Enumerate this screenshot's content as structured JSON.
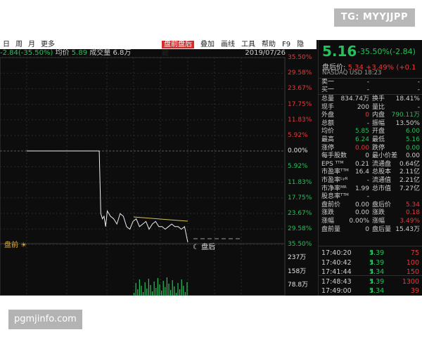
{
  "watermarks": {
    "top": "TG: MYYJJPP",
    "bottom": "pgmjinfo.com"
  },
  "toolbar": {
    "left": [
      "日",
      "周",
      "月",
      "更多"
    ],
    "right": [
      "盘前盘后",
      "叠加",
      "画线",
      "工具",
      "帮助",
      "F9",
      "隐藏"
    ],
    "active_index": 0
  },
  "infobar": {
    "change": "-2.84(-35.50%)",
    "avg_label": "均价",
    "avg_value": "5.89",
    "vol_label": "成交量",
    "vol_value": "6.8万",
    "date": "2019/07/26"
  },
  "chart_data": {
    "type": "line",
    "title": "",
    "xlabel": "",
    "ylabel": "",
    "y_axis_labels": [
      "35.50%",
      "29.58%",
      "23.67%",
      "17.75%",
      "11.83%",
      "5.92%",
      "0.00%",
      "5.92%",
      "11.83%",
      "17.75%",
      "23.67%",
      "29.58%",
      "35.50%"
    ],
    "volume_axis_labels": [
      "237万",
      "158万",
      "78.8万"
    ],
    "ylim_percent": [
      -35.5,
      35.5
    ],
    "session_labels": {
      "pre": "盘前",
      "post": "盘后"
    },
    "series": [
      {
        "x": [
          0,
          5,
          10,
          15,
          20,
          25,
          30,
          35,
          40,
          44,
          45,
          46,
          47,
          48,
          49,
          50,
          52,
          54,
          56,
          58,
          60,
          62,
          64,
          66,
          68,
          70,
          72,
          74,
          76,
          78,
          80,
          82,
          84,
          86,
          88,
          90,
          92,
          94,
          96,
          98,
          100
        ],
        "values": [
          0,
          0,
          0,
          0,
          0,
          0,
          0,
          0,
          0,
          0,
          0,
          -24,
          -26,
          -25,
          -29,
          -23,
          -25,
          -26,
          -28,
          -24,
          -25,
          -29,
          -30,
          -27,
          -26,
          -29,
          -28,
          -27,
          -30,
          -28,
          -27,
          -29,
          -29,
          -30,
          -29,
          -28,
          -29,
          -29,
          -30,
          -29,
          -35
        ]
      }
    ]
  },
  "panel": {
    "price": "5.16",
    "change": "-35.50%(-2.84)",
    "after_label": "盘后价:",
    "after_price": "5.34",
    "after_change": "+3.49%",
    "after_extra": "(+0.1",
    "market": "NASDAQ  USD  18:23",
    "orderbook": [
      {
        "label": "卖一",
        "price": "-",
        "vol": "-"
      },
      {
        "label": "买一",
        "price": "-",
        "vol": "-"
      }
    ],
    "stats": [
      {
        "k1": "总量",
        "v1": "834.74万",
        "k2": "换手",
        "v2": "18.41%",
        "c1": "",
        "c2": ""
      },
      {
        "k1": "现手",
        "v1": "200",
        "k2": "量比",
        "v2": "-",
        "c1": "",
        "c2": ""
      },
      {
        "k1": "外盘",
        "v1": "0",
        "k2": "内盘",
        "v2": "790.11万",
        "c1": "red",
        "c2": "green"
      },
      {
        "k1": "总额",
        "v1": "-",
        "k2": "振幅",
        "v2": "13.50%",
        "c1": "",
        "c2": ""
      },
      {
        "k1": "均价",
        "v1": "5.85",
        "k2": "开盘",
        "v2": "6.00",
        "c1": "green",
        "c2": "green"
      },
      {
        "k1": "最高",
        "v1": "6.24",
        "k2": "最低",
        "v2": "5.16",
        "c1": "green",
        "c2": "green"
      },
      {
        "k1": "涨停",
        "v1": "0.00",
        "k2": "跌停",
        "v2": "0.00",
        "c1": "red",
        "c2": "green"
      },
      {
        "k1": "每手股数",
        "v1": "0",
        "k2": "最小价差",
        "v2": "0.00",
        "c1": "",
        "c2": ""
      },
      {
        "k1": "EPS ᵀᵀᴹ",
        "v1": "0.21",
        "k2": "流通盘",
        "v2": "0.64亿",
        "c1": "",
        "c2": ""
      },
      {
        "k1": "市盈率ᵀᵀᴹ",
        "v1": "16.4",
        "k2": "总股本",
        "v2": "2.11亿",
        "c1": "",
        "c2": ""
      },
      {
        "k1": "市盈率ᴸʸᴿ",
        "v1": "-",
        "k2": "流通值",
        "v2": "2.21亿",
        "c1": "",
        "c2": ""
      },
      {
        "k1": "市净率ᴹᴿ",
        "v1": "1.99",
        "k2": "总市值",
        "v2": "7.27亿",
        "c1": "",
        "c2": ""
      },
      {
        "k1": "股息率ᵀᵀᴹ",
        "v1": "-",
        "k2": "",
        "v2": "",
        "c1": "",
        "c2": ""
      },
      {
        "k1": "盘前价",
        "v1": "0.00",
        "k2": "盘后价",
        "v2": "5.34",
        "c1": "",
        "c2": "red"
      },
      {
        "k1": "涨跌",
        "v1": "0.00",
        "k2": "涨跌",
        "v2": "0.18",
        "c1": "",
        "c2": "red"
      },
      {
        "k1": "涨幅",
        "v1": "0.00%",
        "k2": "涨幅",
        "v2": "3.49%",
        "c1": "",
        "c2": "red"
      },
      {
        "k1": "盘前量",
        "v1": "0",
        "k2": "盘后量",
        "v2": "15.43万",
        "c1": "",
        "c2": ""
      }
    ],
    "ticks": [
      {
        "time": "17:40:20",
        "price": "5.39",
        "vol": "75"
      },
      {
        "time": "17:40:42",
        "price": "5.39",
        "vol": "100"
      },
      {
        "time": "17:41:44",
        "price": "5.34",
        "vol": "150"
      },
      {
        "time": "17:48:43",
        "price": "5.39",
        "vol": "1300"
      },
      {
        "time": "17:49:00",
        "price": "5.34",
        "vol": "39"
      }
    ]
  },
  "colors": {
    "up": "#e63b3b",
    "down": "#25c15a",
    "background": "#0d0d0d",
    "active_tab": "#d32d2d"
  }
}
